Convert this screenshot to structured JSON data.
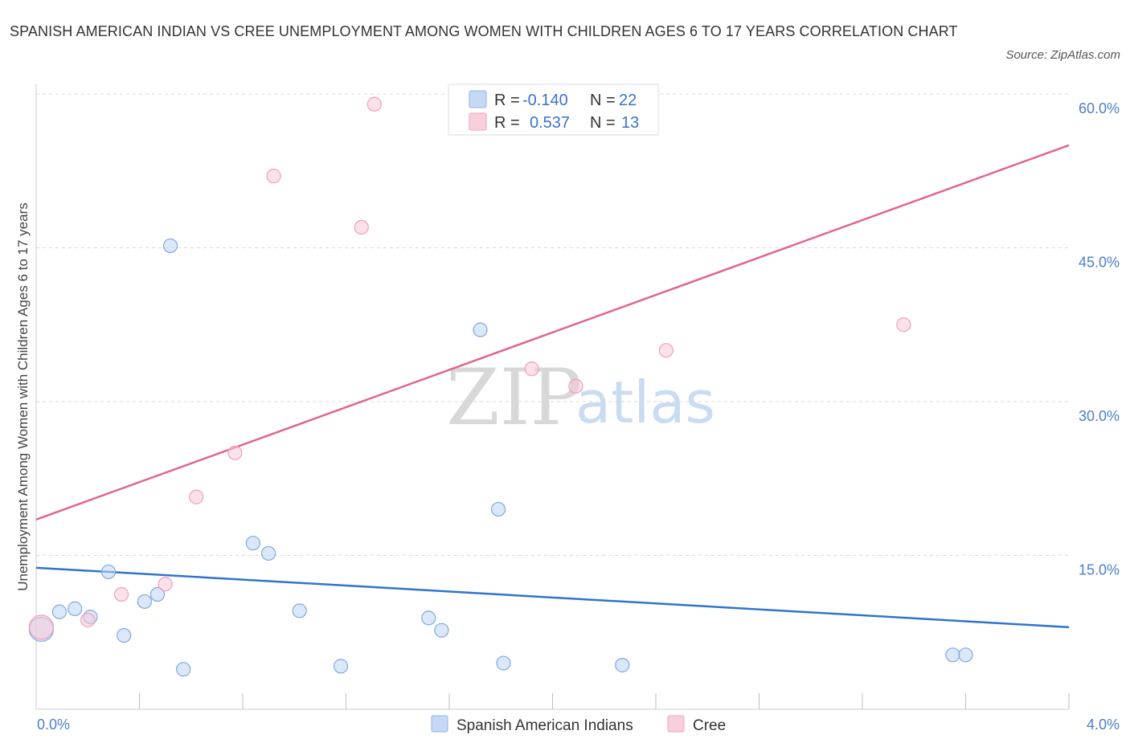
{
  "header": {
    "title": "SPANISH AMERICAN INDIAN VS CREE UNEMPLOYMENT AMONG WOMEN WITH CHILDREN AGES 6 TO 17 YEARS CORRELATION CHART",
    "source": "Source: ZipAtlas.com"
  },
  "watermark": {
    "zip": "ZIP",
    "atlas": "atlas"
  },
  "legend_top": [
    {
      "r_label": "R =",
      "r_value": "-0.140",
      "n_label": "N =",
      "n_value": "22"
    },
    {
      "r_label": "R =",
      "r_value": "0.537",
      "n_label": "N =",
      "n_value": "13"
    }
  ],
  "chart_data": {
    "type": "scatter",
    "title": "SPANISH AMERICAN INDIAN VS CREE UNEMPLOYMENT AMONG WOMEN WITH CHILDREN AGES 6 TO 17 YEARS CORRELATION CHART",
    "xlabel": "",
    "ylabel": "Unemployment Among Women with Children Ages 6 to 17 years",
    "xlim": [
      0,
      4.0
    ],
    "ylim": [
      0,
      60
    ],
    "x_tick_labels": [
      "0.0%",
      "4.0%"
    ],
    "y_ticks": [
      15,
      30,
      45,
      60
    ],
    "y_tick_labels": [
      "15.0%",
      "30.0%",
      "45.0%",
      "60.0%"
    ],
    "grid": "horizontal-dashed",
    "legend_placement": "top-center and bottom",
    "colors": {
      "spanish_american_indians": "#9fc2ee",
      "cree": "#f4aac2",
      "blue_line": "#2f74d0",
      "pink_line": "#e0668e"
    },
    "series": [
      {
        "name": "Spanish American Indians",
        "x": [
          0.02,
          0.09,
          0.15,
          0.21,
          0.28,
          0.34,
          0.42,
          0.47,
          0.52,
          0.57,
          0.84,
          0.9,
          1.02,
          1.18,
          1.52,
          1.57,
          1.72,
          1.79,
          1.81,
          2.27,
          3.55,
          3.6
        ],
        "y": [
          7.8,
          9.5,
          9.8,
          9.0,
          13.4,
          7.2,
          10.5,
          11.2,
          45.2,
          3.9,
          16.2,
          15.2,
          9.6,
          4.2,
          8.9,
          7.7,
          37.0,
          19.5,
          4.5,
          4.3,
          5.3,
          5.3
        ]
      },
      {
        "name": "Cree",
        "x": [
          0.02,
          0.2,
          0.33,
          0.5,
          0.62,
          0.77,
          0.92,
          1.26,
          1.31,
          1.92,
          2.09,
          2.44,
          3.36
        ],
        "y": [
          8.0,
          8.7,
          11.2,
          12.2,
          20.7,
          25.0,
          52.0,
          47.0,
          59.0,
          33.2,
          31.5,
          35.0,
          37.5
        ]
      }
    ],
    "trendlines": [
      {
        "name": "Spanish American Indians",
        "x": [
          0.0,
          4.0
        ],
        "y": [
          13.8,
          8.0
        ]
      },
      {
        "name": "Cree",
        "x": [
          0.0,
          4.0
        ],
        "y": [
          18.5,
          55.0
        ]
      }
    ]
  }
}
